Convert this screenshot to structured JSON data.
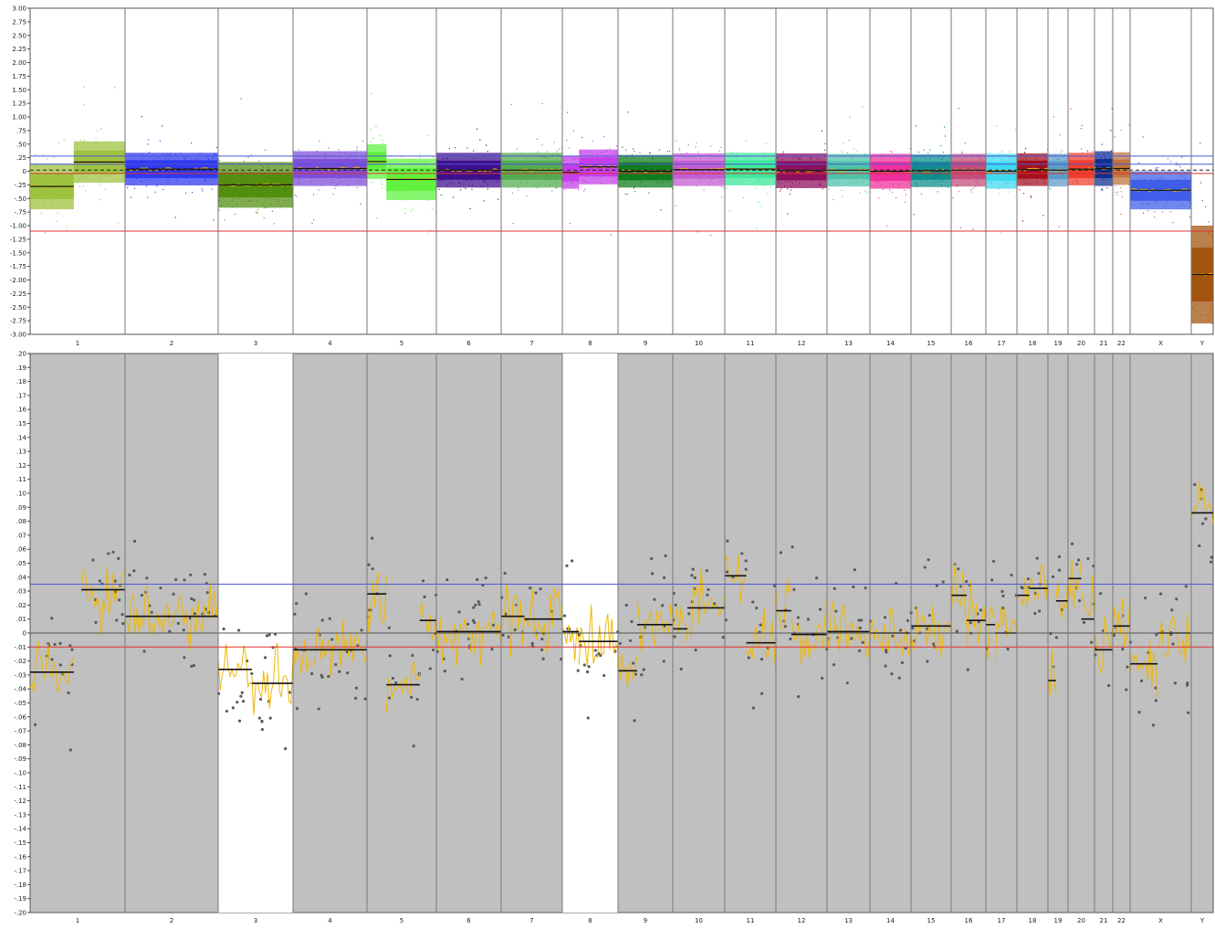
{
  "chart_data": [
    {
      "type": "scatter",
      "panel": "top",
      "ylim": [
        -3.0,
        3.0
      ],
      "y_ticks": [
        "3.00",
        "2.75",
        "2.50",
        "2.25",
        "2.00",
        "1.75",
        "1.50",
        "1.25",
        "1.00",
        ".75",
        ".50",
        ".25",
        "0",
        "-.25",
        "-.50",
        "-.75",
        "-1.00",
        "-1.25",
        "-1.50",
        "-1.75",
        "-2.00",
        "-2.25",
        "-2.50",
        "-2.75",
        "-3.00"
      ],
      "categories": [
        "1",
        "2",
        "3",
        "4",
        "5",
        "6",
        "7",
        "8",
        "9",
        "10",
        "11",
        "12",
        "13",
        "14",
        "15",
        "16",
        "17",
        "18",
        "19",
        "20",
        "21",
        "22",
        "X",
        "Y"
      ],
      "reference_lines": [
        {
          "y": 0.28,
          "color": "#4a56d8"
        },
        {
          "y": 0.13,
          "color": "#4a56d8"
        },
        {
          "y": 0.02,
          "color": "#222222",
          "dashed": true
        },
        {
          "y": -0.04,
          "color": "#e03030"
        },
        {
          "y": -1.1,
          "color": "#e03030"
        }
      ],
      "series": [
        {
          "chr": "1",
          "color": "#9ac13a",
          "segments": [
            {
              "x0": 0.0,
              "x1": 0.46,
              "mean": -0.28,
              "spread": 0.42
            },
            {
              "x0": 0.46,
              "x1": 1.0,
              "mean": 0.17,
              "spread": 0.38
            }
          ]
        },
        {
          "chr": "2",
          "color": "#2b34f0",
          "segments": [
            {
              "x0": 0.0,
              "x1": 1.0,
              "mean": 0.04,
              "spread": 0.3
            }
          ]
        },
        {
          "chr": "3",
          "color": "#4e8c0a",
          "segments": [
            {
              "x0": 0.0,
              "x1": 1.0,
              "mean": -0.25,
              "spread": 0.42
            }
          ]
        },
        {
          "chr": "4",
          "color": "#7a4ad8",
          "segments": [
            {
              "x0": 0.0,
              "x1": 1.0,
              "mean": 0.05,
              "spread": 0.32
            }
          ]
        },
        {
          "chr": "5",
          "color": "#5cf23a",
          "segments": [
            {
              "x0": 0.0,
              "x1": 0.28,
              "mean": 0.18,
              "spread": 0.32
            },
            {
              "x0": 0.28,
              "x1": 1.0,
              "mean": -0.15,
              "spread": 0.38
            }
          ]
        },
        {
          "chr": "6",
          "color": "#3a0a8a",
          "segments": [
            {
              "x0": 0.0,
              "x1": 1.0,
              "mean": 0.02,
              "spread": 0.32
            }
          ]
        },
        {
          "chr": "7",
          "color": "#4eaa4a",
          "segments": [
            {
              "x0": 0.0,
              "x1": 1.0,
              "mean": 0.02,
              "spread": 0.32
            }
          ]
        },
        {
          "chr": "8",
          "color": "#c43ae8",
          "segments": [
            {
              "x0": 0.0,
              "x1": 0.3,
              "mean": -0.02,
              "spread": 0.3
            },
            {
              "x0": 0.3,
              "x1": 1.0,
              "mean": 0.08,
              "spread": 0.32
            }
          ]
        },
        {
          "chr": "9",
          "color": "#0a7a1a",
          "segments": [
            {
              "x0": 0.0,
              "x1": 1.0,
              "mean": 0.0,
              "spread": 0.3
            }
          ]
        },
        {
          "chr": "10",
          "color": "#c05ad0",
          "segments": [
            {
              "x0": 0.0,
              "x1": 1.0,
              "mean": 0.03,
              "spread": 0.3
            }
          ]
        },
        {
          "chr": "11",
          "color": "#3ae89a",
          "segments": [
            {
              "x0": 0.0,
              "x1": 1.0,
              "mean": 0.04,
              "spread": 0.3
            }
          ]
        },
        {
          "chr": "12",
          "color": "#8a0a5a",
          "segments": [
            {
              "x0": 0.0,
              "x1": 1.0,
              "mean": 0.01,
              "spread": 0.32
            }
          ]
        },
        {
          "chr": "13",
          "color": "#4ac0a8",
          "segments": [
            {
              "x0": 0.0,
              "x1": 1.0,
              "mean": 0.02,
              "spread": 0.3
            }
          ]
        },
        {
          "chr": "14",
          "color": "#f02a9a",
          "segments": [
            {
              "x0": 0.0,
              "x1": 1.0,
              "mean": 0.0,
              "spread": 0.32
            }
          ]
        },
        {
          "chr": "15",
          "color": "#0a8a8a",
          "segments": [
            {
              "x0": 0.0,
              "x1": 1.0,
              "mean": 0.01,
              "spread": 0.3
            }
          ]
        },
        {
          "chr": "16",
          "color": "#c04a7a",
          "segments": [
            {
              "x0": 0.0,
              "x1": 1.0,
              "mean": 0.02,
              "spread": 0.3
            }
          ]
        },
        {
          "chr": "17",
          "color": "#3ad8f0",
          "segments": [
            {
              "x0": 0.0,
              "x1": 1.0,
              "mean": 0.0,
              "spread": 0.32
            }
          ]
        },
        {
          "chr": "18",
          "color": "#a00a1a",
          "segments": [
            {
              "x0": 0.0,
              "x1": 1.0,
              "mean": 0.03,
              "spread": 0.3
            }
          ]
        },
        {
          "chr": "19",
          "color": "#5a9ac8",
          "segments": [
            {
              "x0": 0.0,
              "x1": 1.0,
              "mean": 0.02,
              "spread": 0.3
            }
          ]
        },
        {
          "chr": "20",
          "color": "#f03a2a",
          "segments": [
            {
              "x0": 0.0,
              "x1": 1.0,
              "mean": 0.04,
              "spread": 0.3
            }
          ]
        },
        {
          "chr": "21",
          "color": "#0a2a8a",
          "segments": [
            {
              "x0": 0.0,
              "x1": 1.0,
              "mean": 0.05,
              "spread": 0.32
            }
          ]
        },
        {
          "chr": "22",
          "color": "#c0703a",
          "segments": [
            {
              "x0": 0.0,
              "x1": 1.0,
              "mean": 0.05,
              "spread": 0.3
            }
          ]
        },
        {
          "chr": "X",
          "color": "#3a5ae8",
          "segments": [
            {
              "x0": 0.0,
              "x1": 1.0,
              "mean": -0.35,
              "spread": 0.35
            }
          ]
        },
        {
          "chr": "Y",
          "color": "#a0500a",
          "segments": [
            {
              "x0": 0.0,
              "x1": 1.0,
              "mean": -1.9,
              "spread": 0.9
            }
          ]
        }
      ]
    },
    {
      "type": "scatter",
      "panel": "bottom",
      "ylim": [
        -0.2,
        0.2
      ],
      "y_ticks": [
        ".20",
        ".19",
        ".18",
        ".17",
        ".16",
        ".15",
        ".14",
        ".13",
        ".12",
        ".11",
        ".10",
        ".09",
        ".08",
        ".07",
        ".06",
        ".05",
        ".04",
        ".03",
        ".02",
        ".01",
        "0",
        "-.01",
        "-.02",
        "-.03",
        "-.04",
        "-.05",
        "-.06",
        "-.07",
        "-.08",
        "-.09",
        "-.10",
        "-.11",
        "-.12",
        "-.13",
        "-.14",
        "-.15",
        "-.16",
        "-.17",
        "-.18",
        "-.19",
        "-.20"
      ],
      "categories": [
        "1",
        "2",
        "3",
        "4",
        "5",
        "6",
        "7",
        "8",
        "9",
        "10",
        "11",
        "12",
        "13",
        "14",
        "15",
        "16",
        "17",
        "18",
        "19",
        "20",
        "21",
        "22",
        "X",
        "Y"
      ],
      "highlighted_categories": [
        "3",
        "8"
      ],
      "reference_lines": [
        {
          "y": 0.035,
          "color": "#4a56d8"
        },
        {
          "y": 0.0,
          "color": "#555555"
        },
        {
          "y": -0.01,
          "color": "#e03030"
        }
      ],
      "segments": [
        {
          "chr": "1",
          "x0": 0.0,
          "x1": 0.46,
          "y": -0.028
        },
        {
          "chr": "1",
          "x0": 0.54,
          "x1": 1.0,
          "y": 0.031
        },
        {
          "chr": "2",
          "x0": 0.0,
          "x1": 1.0,
          "y": 0.012
        },
        {
          "chr": "3",
          "x0": 0.0,
          "x1": 0.45,
          "y": -0.026
        },
        {
          "chr": "3",
          "x0": 0.45,
          "x1": 1.0,
          "y": -0.036
        },
        {
          "chr": "4",
          "x0": 0.0,
          "x1": 1.0,
          "y": -0.012
        },
        {
          "chr": "5",
          "x0": 0.0,
          "x1": 0.28,
          "y": 0.028
        },
        {
          "chr": "5",
          "x0": 0.28,
          "x1": 0.76,
          "y": -0.037
        },
        {
          "chr": "5",
          "x0": 0.76,
          "x1": 1.0,
          "y": 0.009
        },
        {
          "chr": "6",
          "x0": 0.0,
          "x1": 1.0,
          "y": 0.001
        },
        {
          "chr": "7",
          "x0": 0.0,
          "x1": 0.38,
          "y": 0.012
        },
        {
          "chr": "7",
          "x0": 0.38,
          "x1": 1.0,
          "y": 0.01
        },
        {
          "chr": "8",
          "x0": 0.0,
          "x1": 0.3,
          "y": 0.001
        },
        {
          "chr": "8",
          "x0": 0.3,
          "x1": 1.0,
          "y": -0.006
        },
        {
          "chr": "9",
          "x0": 0.0,
          "x1": 0.35,
          "y": -0.027
        },
        {
          "chr": "9",
          "x0": 0.35,
          "x1": 1.0,
          "y": 0.006
        },
        {
          "chr": "10",
          "x0": 0.0,
          "x1": 0.28,
          "y": 0.003
        },
        {
          "chr": "10",
          "x0": 0.28,
          "x1": 1.0,
          "y": 0.018
        },
        {
          "chr": "11",
          "x0": 0.0,
          "x1": 0.42,
          "y": 0.041
        },
        {
          "chr": "11",
          "x0": 0.42,
          "x1": 1.0,
          "y": -0.007
        },
        {
          "chr": "12",
          "x0": 0.0,
          "x1": 0.3,
          "y": 0.016
        },
        {
          "chr": "12",
          "x0": 0.3,
          "x1": 1.0,
          "y": -0.001
        },
        {
          "chr": "13",
          "x0": 0.0,
          "x1": 1.0,
          "y": 0.001
        },
        {
          "chr": "14",
          "x0": 0.0,
          "x1": 1.0,
          "y": 0.0
        },
        {
          "chr": "15",
          "x0": 0.0,
          "x1": 1.0,
          "y": 0.005
        },
        {
          "chr": "16",
          "x0": 0.0,
          "x1": 0.45,
          "y": 0.027
        },
        {
          "chr": "16",
          "x0": 0.45,
          "x1": 1.0,
          "y": 0.009
        },
        {
          "chr": "17",
          "x0": 0.0,
          "x1": 0.3,
          "y": 0.006
        },
        {
          "chr": "17",
          "x0": 0.3,
          "x1": 1.0,
          "y": 0.0
        },
        {
          "chr": "18",
          "x0": 0.0,
          "x1": 0.4,
          "y": 0.027
        },
        {
          "chr": "18",
          "x0": 0.4,
          "x1": 1.0,
          "y": 0.032
        },
        {
          "chr": "19",
          "x0": 0.0,
          "x1": 0.4,
          "y": -0.034
        },
        {
          "chr": "19",
          "x0": 0.4,
          "x1": 1.0,
          "y": 0.023
        },
        {
          "chr": "20",
          "x0": 0.0,
          "x1": 0.5,
          "y": 0.039
        },
        {
          "chr": "20",
          "x0": 0.5,
          "x1": 1.0,
          "y": 0.01
        },
        {
          "chr": "21",
          "x0": 0.0,
          "x1": 1.0,
          "y": -0.012
        },
        {
          "chr": "22",
          "x0": 0.0,
          "x1": 1.0,
          "y": 0.005
        },
        {
          "chr": "X",
          "x0": 0.0,
          "x1": 0.45,
          "y": -0.022
        },
        {
          "chr": "X",
          "x0": 0.45,
          "x1": 1.0,
          "y": 0.0
        },
        {
          "chr": "Y",
          "x0": 0.0,
          "x1": 1.0,
          "y": 0.086
        }
      ],
      "trend_color": "#f0b800",
      "point_color": "#5a5a5a",
      "background_color": "#c0c0c0",
      "highlight_color": "#ffffff"
    }
  ]
}
